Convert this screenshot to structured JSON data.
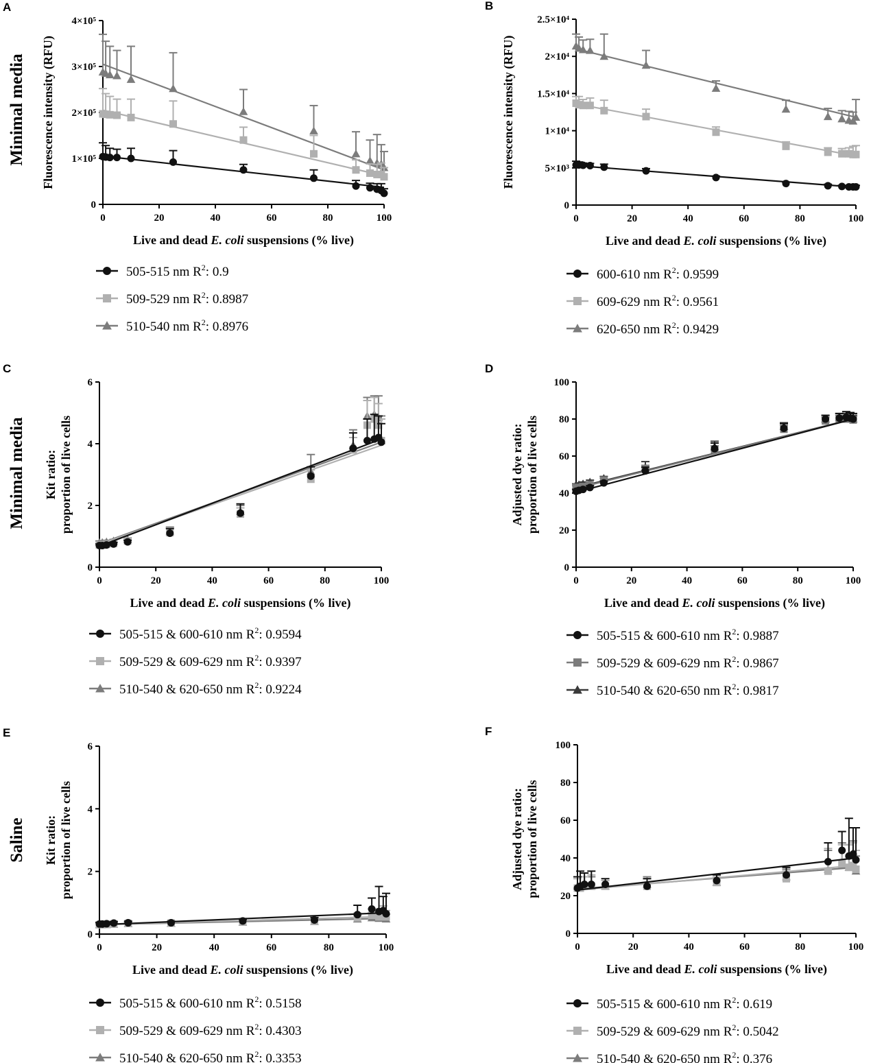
{
  "row_labels": [
    "Minimal media",
    "Minimal media",
    "Saline"
  ],
  "colors": {
    "black": "#111111",
    "light": "#b0b0b0",
    "mid": "#7c7c7c",
    "dark": "#3a3a3a"
  },
  "chart_data": [
    {
      "panel": "A",
      "type": "scatter",
      "xlabel": "Live and dead E. coli suspensions (% live)",
      "xlabel_parts": [
        "Live and dead ",
        "E. coli",
        " suspensions (% live)"
      ],
      "ylabel": "Fluorescence intensity (RFU)",
      "xlim": [
        0,
        100
      ],
      "ylim": [
        0,
        400000
      ],
      "xticks": [
        0,
        20,
        40,
        60,
        80,
        100
      ],
      "yticks": [
        0,
        100000,
        200000,
        300000,
        400000
      ],
      "ytick_labels": [
        "0",
        "1×10⁵",
        "2×10⁵",
        "3×10⁵",
        "4×10⁵"
      ],
      "x": [
        0,
        1,
        2.5,
        5,
        10,
        25,
        50,
        75,
        90,
        95,
        97.5,
        99,
        100
      ],
      "series": [
        {
          "name": "505-515 nm",
          "r2": "0.9",
          "color": "#111111",
          "marker": "circle",
          "values": [
            104000,
            103000,
            102000,
            102000,
            100000,
            92000,
            75000,
            57000,
            40000,
            36000,
            33000,
            30000,
            24000
          ],
          "errors": [
            30000,
            25000,
            20000,
            18000,
            22000,
            25000,
            12000,
            18000,
            12000,
            10000,
            12000,
            15000,
            10000
          ],
          "fit": [
            105000,
            37000
          ]
        },
        {
          "name": "509-529 nm",
          "r2": "0.8987",
          "color": "#b0b0b0",
          "marker": "square",
          "values": [
            197000,
            196000,
            195000,
            194000,
            189000,
            175000,
            140000,
            110000,
            75000,
            68000,
            65000,
            65000,
            60000
          ],
          "errors": [
            55000,
            45000,
            40000,
            35000,
            40000,
            50000,
            28000,
            40000,
            22000,
            20000,
            22000,
            25000,
            20000
          ],
          "fit": [
            205000,
            62000
          ]
        },
        {
          "name": "510-540 nm",
          "r2": "0.8976",
          "color": "#7c7c7c",
          "marker": "triangle",
          "values": [
            288000,
            285000,
            282000,
            280000,
            272000,
            252000,
            202000,
            160000,
            110000,
            95000,
            90000,
            88000,
            80000
          ],
          "errors": [
            82000,
            70000,
            62000,
            55000,
            72000,
            78000,
            48000,
            55000,
            48000,
            45000,
            62000,
            42000,
            35000
          ],
          "fit": [
            305000,
            75000
          ]
        }
      ]
    },
    {
      "panel": "B",
      "type": "scatter",
      "xlabel": "Live and dead E. coli suspensions (% live)",
      "xlabel_parts": [
        "Live and dead ",
        "E. coli",
        " suspensions (% live)"
      ],
      "ylabel": "Fluorescence intensity (RFU)",
      "xlim": [
        0,
        100
      ],
      "ylim": [
        0,
        25000
      ],
      "xticks": [
        0,
        20,
        40,
        60,
        80,
        100
      ],
      "yticks": [
        0,
        5000,
        10000,
        15000,
        20000,
        25000
      ],
      "ytick_labels": [
        "0",
        "5×10³",
        "1×10⁴",
        "1.5×10⁴",
        "2×10⁴",
        "2.5×10⁴"
      ],
      "x": [
        0,
        1,
        2.5,
        5,
        10,
        25,
        50,
        75,
        90,
        95,
        97.5,
        99,
        100
      ],
      "series": [
        {
          "name": "600-610 nm",
          "r2": "0.9599",
          "color": "#111111",
          "marker": "circle",
          "values": [
            5400,
            5400,
            5350,
            5300,
            5100,
            4600,
            3700,
            2900,
            2600,
            2500,
            2450,
            2450,
            2450
          ],
          "errors": [
            500,
            400,
            300,
            300,
            400,
            300,
            200,
            200,
            200,
            150,
            150,
            200,
            200
          ],
          "fit": [
            5300,
            2400
          ]
        },
        {
          "name": "609-629 nm",
          "r2": "0.9561",
          "color": "#b0b0b0",
          "marker": "square",
          "values": [
            13700,
            13500,
            13400,
            13400,
            12700,
            11900,
            9800,
            7900,
            7100,
            6900,
            6900,
            6800,
            6800
          ],
          "errors": [
            900,
            1100,
            800,
            1000,
            1400,
            1000,
            700,
            600,
            600,
            700,
            800,
            1100,
            1200
          ],
          "fit": [
            13600,
            6600
          ]
        },
        {
          "name": "620-650 nm",
          "r2": "0.9429",
          "color": "#7c7c7c",
          "marker": "triangle",
          "values": [
            21400,
            21100,
            20900,
            20800,
            20000,
            18800,
            15700,
            12900,
            11900,
            11600,
            11400,
            11300,
            11800
          ],
          "errors": [
            1600,
            1500,
            1300,
            1500,
            3000,
            2000,
            1000,
            1200,
            1100,
            1100,
            1200,
            1200,
            2400
          ],
          "fit": [
            21000,
            11800
          ]
        }
      ]
    },
    {
      "panel": "C",
      "type": "scatter",
      "xlabel": "Live and dead E. coli suspensions (% live)",
      "xlabel_parts": [
        "Live and dead ",
        "E. coli",
        " suspensions (% live)"
      ],
      "ylabel_lines": [
        "Kit ratio:",
        "proportion of live cells"
      ],
      "xlim": [
        0,
        100
      ],
      "ylim": [
        0,
        6
      ],
      "xticks": [
        0,
        20,
        40,
        60,
        80,
        100
      ],
      "yticks": [
        0,
        2,
        4,
        6
      ],
      "ytick_labels": [
        "0",
        "2",
        "4",
        "6"
      ],
      "x": [
        0,
        1,
        2.5,
        5,
        10,
        25,
        50,
        75,
        90,
        95,
        97.5,
        99,
        100
      ],
      "series": [
        {
          "name": "505-515 & 600-610 nm",
          "r2": "0.9594",
          "color": "#111111",
          "marker": "circle",
          "values": [
            0.7,
            0.7,
            0.72,
            0.75,
            0.82,
            1.1,
            1.75,
            2.95,
            3.85,
            4.1,
            4.15,
            4.2,
            4.05
          ],
          "errors": [
            0.05,
            0.05,
            0.05,
            0.05,
            0.05,
            0.15,
            0.3,
            0.3,
            0.5,
            0.7,
            0.8,
            0.7,
            0.6
          ],
          "fit": [
            0.68,
            4.15
          ]
        },
        {
          "name": "509-529 & 609-629 nm",
          "r2": "0.9397",
          "color": "#b0b0b0",
          "marker": "square",
          "values": [
            0.72,
            0.72,
            0.74,
            0.77,
            0.85,
            1.12,
            1.72,
            2.85,
            3.8,
            4.6,
            4.8,
            4.6,
            4.1
          ],
          "errors": [
            0.05,
            0.05,
            0.05,
            0.05,
            0.05,
            0.15,
            0.2,
            0.3,
            0.4,
            0.8,
            0.7,
            0.7,
            0.7
          ],
          "fit": [
            0.74,
            3.95
          ]
        },
        {
          "name": "510-540 & 620-650 nm",
          "r2": "0.9224",
          "color": "#7c7c7c",
          "marker": "triangle",
          "values": [
            0.8,
            0.8,
            0.82,
            0.85,
            0.9,
            1.15,
            1.8,
            3.1,
            3.95,
            4.9,
            4.95,
            4.85,
            4.1
          ],
          "errors": [
            0.05,
            0.05,
            0.05,
            0.05,
            0.05,
            0.15,
            0.2,
            0.55,
            0.5,
            0.6,
            0.6,
            0.7,
            0.8
          ],
          "fit": [
            0.76,
            4.05
          ]
        }
      ]
    },
    {
      "panel": "D",
      "type": "scatter",
      "xlabel": "Live and dead E. coli suspensions (% live)",
      "xlabel_parts": [
        "Live and dead ",
        "E. coli",
        " suspensions (% live)"
      ],
      "ylabel_lines": [
        "Adjusted dye ratio:",
        "proportion of live cells"
      ],
      "xlim": [
        0,
        100
      ],
      "ylim": [
        0,
        100
      ],
      "xticks": [
        0,
        20,
        40,
        60,
        80,
        100
      ],
      "yticks": [
        0,
        20,
        40,
        60,
        80,
        100
      ],
      "ytick_labels": [
        "0",
        "20",
        "40",
        "60",
        "80",
        "100"
      ],
      "x": [
        0,
        1,
        2.5,
        5,
        10,
        25,
        50,
        75,
        90,
        95,
        97.5,
        99,
        100
      ],
      "series": [
        {
          "name": "505-515 & 600-610 nm",
          "r2": "0.9887",
          "color": "#111111",
          "marker": "circle",
          "values": [
            41,
            41.5,
            42,
            43,
            45.5,
            52,
            64,
            75,
            80,
            80.5,
            81,
            80.5,
            80
          ],
          "errors": [
            1,
            1,
            1,
            1,
            1,
            2,
            3,
            2.5,
            2,
            2.5,
            3,
            3,
            3
          ],
          "fit": [
            40.5,
            80
          ]
        },
        {
          "name": "509-529 & 609-629 nm",
          "r2": "0.9867",
          "color": "#7c7c7c",
          "marker": "square",
          "values": [
            43,
            43,
            43.5,
            44.5,
            47,
            53,
            63.5,
            74.5,
            79,
            80,
            80,
            80,
            79.5
          ],
          "errors": [
            1,
            1,
            1,
            1,
            1,
            2,
            2,
            2,
            2,
            2,
            2,
            2,
            2
          ],
          "fit": [
            42.5,
            80
          ]
        },
        {
          "name": "510-540 & 620-650 nm",
          "r2": "0.9817",
          "color": "#3a3a3a",
          "marker": "triangle",
          "values": [
            44,
            44.5,
            45,
            46,
            48,
            54,
            65,
            76,
            80,
            81,
            81,
            81,
            80
          ],
          "errors": [
            1,
            1,
            1,
            1,
            1,
            3,
            3,
            2,
            2,
            2,
            2,
            2,
            2
          ],
          "fit": [
            43,
            80
          ]
        }
      ]
    },
    {
      "panel": "E",
      "type": "scatter",
      "xlabel": "Live and dead E. coli suspensions (% live)",
      "xlabel_parts": [
        "Live and dead ",
        "E. coli",
        " suspensions (% live)"
      ],
      "ylabel_lines": [
        "Kit ratio:",
        "proportion of live cells"
      ],
      "xlim": [
        0,
        100
      ],
      "ylim": [
        0,
        6
      ],
      "xticks": [
        0,
        20,
        40,
        60,
        80,
        100
      ],
      "yticks": [
        0,
        2,
        4,
        6
      ],
      "ytick_labels": [
        "0",
        "2",
        "4",
        "6"
      ],
      "x": [
        0,
        1,
        2.5,
        5,
        10,
        25,
        50,
        75,
        90,
        95,
        97.5,
        99,
        100
      ],
      "series": [
        {
          "name": "505-515 & 600-610 nm",
          "r2": "0.5158",
          "color": "#111111",
          "marker": "circle",
          "values": [
            0.32,
            0.32,
            0.33,
            0.35,
            0.36,
            0.36,
            0.42,
            0.45,
            0.62,
            0.8,
            0.72,
            0.75,
            0.65
          ],
          "errors": [
            0.05,
            0.05,
            0.05,
            0.05,
            0.05,
            0.05,
            0.05,
            0.08,
            0.3,
            0.35,
            0.8,
            0.45,
            0.65
          ],
          "fit": [
            0.3,
            0.68
          ]
        },
        {
          "name": "509-529 & 609-629 nm",
          "r2": "0.4303",
          "color": "#b0b0b0",
          "marker": "square",
          "values": [
            0.3,
            0.3,
            0.31,
            0.32,
            0.34,
            0.35,
            0.4,
            0.42,
            0.52,
            0.6,
            0.55,
            0.6,
            0.55
          ],
          "errors": [
            0.05,
            0.05,
            0.05,
            0.05,
            0.05,
            0.05,
            0.05,
            0.05,
            0.15,
            0.2,
            0.25,
            0.3,
            0.2
          ],
          "fit": [
            0.3,
            0.56
          ]
        },
        {
          "name": "510-540 & 620-650 nm",
          "r2": "0.3353",
          "color": "#7c7c7c",
          "marker": "triangle",
          "values": [
            0.3,
            0.3,
            0.3,
            0.31,
            0.33,
            0.34,
            0.38,
            0.4,
            0.48,
            0.52,
            0.5,
            0.52,
            0.48
          ],
          "errors": [
            0.05,
            0.05,
            0.05,
            0.05,
            0.05,
            0.05,
            0.05,
            0.05,
            0.12,
            0.15,
            0.2,
            0.2,
            0.15
          ],
          "fit": [
            0.3,
            0.5
          ]
        }
      ]
    },
    {
      "panel": "F",
      "type": "scatter",
      "xlabel": "Live and dead E. coli suspensions (% live)",
      "xlabel_parts": [
        "Live and dead ",
        "E. coli",
        " suspensions (% live)"
      ],
      "ylabel_lines": [
        "Adjusted dye ratio:",
        "proportion of live cells"
      ],
      "xlim": [
        0,
        100
      ],
      "ylim": [
        0,
        100
      ],
      "xticks": [
        0,
        20,
        40,
        60,
        80,
        100
      ],
      "yticks": [
        0,
        20,
        40,
        60,
        80,
        100
      ],
      "ytick_labels": [
        "0",
        "20",
        "40",
        "60",
        "80",
        "100"
      ],
      "x": [
        0,
        1,
        2.5,
        5,
        10,
        25,
        50,
        75,
        90,
        95,
        97.5,
        99,
        100
      ],
      "series": [
        {
          "name": "505-515 & 600-610 nm",
          "r2": "0.619",
          "color": "#111111",
          "marker": "circle",
          "values": [
            24,
            25,
            26,
            26,
            26,
            25,
            28,
            31,
            38,
            44,
            41,
            42,
            39
          ],
          "errors": [
            6,
            8,
            6,
            7,
            3,
            4,
            3,
            4,
            10,
            10,
            20,
            14,
            17
          ],
          "fit": [
            23,
            40
          ]
        },
        {
          "name": "509-529 & 609-629 nm",
          "r2": "0.5042",
          "color": "#b0b0b0",
          "marker": "square",
          "values": [
            24,
            24,
            25,
            25,
            25,
            25,
            27,
            29,
            33,
            37,
            35,
            36,
            34
          ],
          "errors": [
            5,
            6,
            5,
            6,
            3,
            4,
            3,
            4,
            12,
            10,
            12,
            12,
            10
          ],
          "fit": [
            23,
            36
          ]
        },
        {
          "name": "510-540 & 620-650 nm",
          "r2": "0.376",
          "color": "#7c7c7c",
          "marker": "triangle",
          "values": [
            25,
            25,
            25,
            25,
            25,
            26,
            27,
            30,
            34,
            36,
            35,
            35,
            33
          ],
          "errors": [
            5,
            5,
            5,
            5,
            3,
            4,
            3,
            4,
            10,
            12,
            12,
            14,
            8
          ],
          "fit": [
            23.5,
            35
          ]
        }
      ]
    }
  ]
}
